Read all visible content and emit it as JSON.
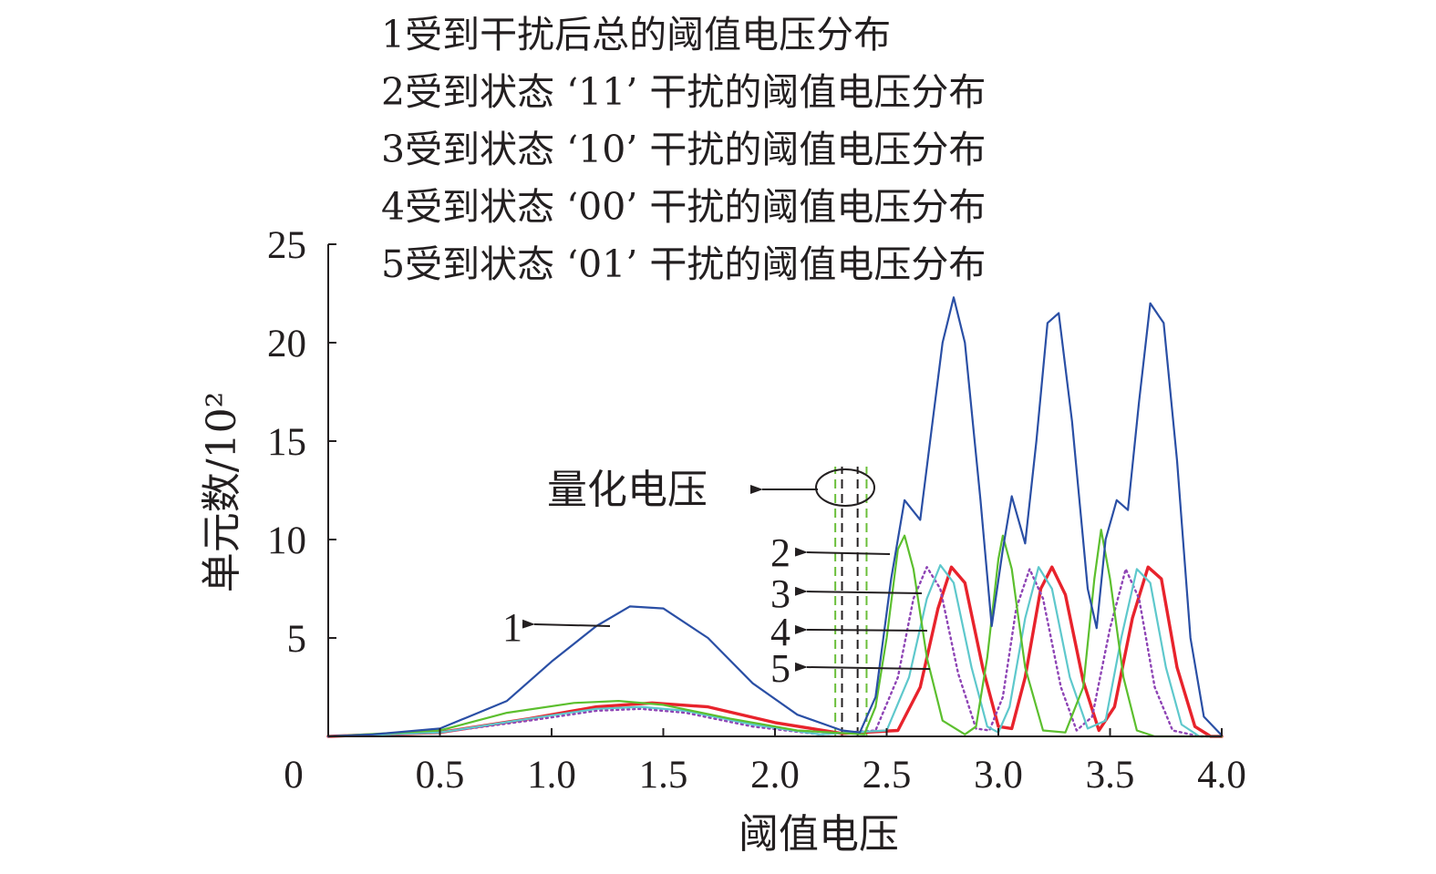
{
  "chart_data": {
    "type": "line",
    "xlabel": "阈值电压",
    "ylabel": "单元数/10²",
    "xlim": [
      0,
      4.0
    ],
    "ylim": [
      0,
      25
    ],
    "xticks": [
      "0",
      "0.5",
      "1.0",
      "1.5",
      "2.0",
      "2.5",
      "3.0",
      "3.5",
      "4.0"
    ],
    "yticks": [
      "5",
      "10",
      "15",
      "20",
      "25"
    ],
    "grid": false,
    "legend_position": "top",
    "legend": [
      "1受到干扰后总的阈值电压分布",
      "2受到状态 ‘11’ 干扰的阈值电压分布",
      "3受到状态 ‘10’ 干扰的阈值电压分布",
      "4受到状态 ‘00’ 干扰的阈值电压分布",
      "5受到状态 ‘01’ 干扰的阈值电压分布"
    ],
    "annotations": {
      "quantization_voltage": "量化电压",
      "curve_labels": [
        "1",
        "2",
        "3",
        "4",
        "5"
      ]
    },
    "quantization_lines": [
      {
        "x": 2.27,
        "color": "#6bbf3a"
      },
      {
        "x": 2.3,
        "color": "#231f20"
      },
      {
        "x": 2.37,
        "color": "#231f20"
      },
      {
        "x": 2.41,
        "color": "#6bbf3a"
      }
    ],
    "series": [
      {
        "color": "#2a4fa5",
        "points": [
          [
            0.0,
            0.0
          ],
          [
            0.2,
            0.1
          ],
          [
            0.5,
            0.4
          ],
          [
            0.8,
            1.8
          ],
          [
            1.0,
            3.8
          ],
          [
            1.2,
            5.6
          ],
          [
            1.35,
            6.6
          ],
          [
            1.5,
            6.5
          ],
          [
            1.7,
            5.0
          ],
          [
            1.9,
            2.7
          ],
          [
            2.1,
            1.1
          ],
          [
            2.3,
            0.3
          ],
          [
            2.38,
            0.2
          ],
          [
            2.45,
            2.0
          ],
          [
            2.52,
            8.0
          ],
          [
            2.58,
            12.0
          ],
          [
            2.65,
            11.0
          ],
          [
            2.7,
            15.5
          ],
          [
            2.75,
            20.0
          ],
          [
            2.8,
            22.3
          ],
          [
            2.85,
            20.0
          ],
          [
            2.92,
            12.0
          ],
          [
            2.97,
            5.6
          ],
          [
            3.02,
            9.5
          ],
          [
            3.06,
            12.2
          ],
          [
            3.12,
            9.8
          ],
          [
            3.17,
            15.0
          ],
          [
            3.22,
            21.0
          ],
          [
            3.27,
            21.5
          ],
          [
            3.33,
            16.0
          ],
          [
            3.4,
            7.5
          ],
          [
            3.44,
            5.5
          ],
          [
            3.48,
            10.0
          ],
          [
            3.53,
            12.0
          ],
          [
            3.58,
            11.5
          ],
          [
            3.63,
            17.0
          ],
          [
            3.68,
            22.0
          ],
          [
            3.74,
            21.0
          ],
          [
            3.8,
            14.0
          ],
          [
            3.86,
            5.0
          ],
          [
            3.92,
            1.0
          ],
          [
            4.0,
            0.05
          ]
        ]
      },
      {
        "color": "#5cbf2e",
        "points": [
          [
            0.0,
            0.0
          ],
          [
            0.5,
            0.3
          ],
          [
            0.8,
            1.2
          ],
          [
            1.1,
            1.7
          ],
          [
            1.3,
            1.8
          ],
          [
            1.5,
            1.6
          ],
          [
            1.8,
            0.9
          ],
          [
            2.1,
            0.3
          ],
          [
            2.4,
            0.1
          ],
          [
            2.45,
            1.5
          ],
          [
            2.5,
            5.0
          ],
          [
            2.55,
            9.5
          ],
          [
            2.58,
            10.2
          ],
          [
            2.62,
            8.5
          ],
          [
            2.68,
            4.0
          ],
          [
            2.75,
            0.8
          ],
          [
            2.85,
            0.1
          ],
          [
            2.9,
            0.5
          ],
          [
            2.95,
            4.0
          ],
          [
            3.0,
            9.0
          ],
          [
            3.02,
            10.2
          ],
          [
            3.06,
            8.5
          ],
          [
            3.12,
            3.5
          ],
          [
            3.2,
            0.3
          ],
          [
            3.3,
            0.2
          ],
          [
            3.38,
            2.5
          ],
          [
            3.43,
            8.0
          ],
          [
            3.46,
            10.5
          ],
          [
            3.5,
            8.0
          ],
          [
            3.56,
            3.0
          ],
          [
            3.62,
            0.3
          ],
          [
            3.7,
            0.0
          ],
          [
            4.0,
            0.0
          ]
        ]
      },
      {
        "color": "#5ec8cc",
        "points": [
          [
            0.0,
            0.0
          ],
          [
            0.5,
            0.2
          ],
          [
            0.9,
            0.9
          ],
          [
            1.2,
            1.4
          ],
          [
            1.4,
            1.5
          ],
          [
            1.6,
            1.3
          ],
          [
            1.9,
            0.6
          ],
          [
            2.2,
            0.1
          ],
          [
            2.5,
            0.3
          ],
          [
            2.6,
            3.0
          ],
          [
            2.68,
            7.0
          ],
          [
            2.74,
            8.7
          ],
          [
            2.8,
            7.8
          ],
          [
            2.88,
            3.5
          ],
          [
            2.95,
            0.5
          ],
          [
            3.0,
            0.2
          ],
          [
            3.05,
            1.5
          ],
          [
            3.12,
            6.0
          ],
          [
            3.18,
            8.6
          ],
          [
            3.24,
            7.5
          ],
          [
            3.32,
            3.0
          ],
          [
            3.4,
            0.4
          ],
          [
            3.48,
            0.8
          ],
          [
            3.55,
            5.0
          ],
          [
            3.62,
            8.5
          ],
          [
            3.68,
            7.8
          ],
          [
            3.75,
            3.5
          ],
          [
            3.82,
            0.6
          ],
          [
            3.9,
            0.0
          ],
          [
            4.0,
            0.0
          ]
        ]
      },
      {
        "color": "#8e44b5",
        "points": [
          [
            0.0,
            0.0
          ],
          [
            0.5,
            0.2
          ],
          [
            0.9,
            0.8
          ],
          [
            1.2,
            1.3
          ],
          [
            1.4,
            1.4
          ],
          [
            1.6,
            1.2
          ],
          [
            1.9,
            0.5
          ],
          [
            2.2,
            0.1
          ],
          [
            2.45,
            0.3
          ],
          [
            2.55,
            3.0
          ],
          [
            2.62,
            7.0
          ],
          [
            2.68,
            8.6
          ],
          [
            2.74,
            7.5
          ],
          [
            2.82,
            3.2
          ],
          [
            2.9,
            0.4
          ],
          [
            2.96,
            0.3
          ],
          [
            3.02,
            2.0
          ],
          [
            3.08,
            6.5
          ],
          [
            3.14,
            8.5
          ],
          [
            3.2,
            7.0
          ],
          [
            3.28,
            2.5
          ],
          [
            3.35,
            0.3
          ],
          [
            3.42,
            1.0
          ],
          [
            3.5,
            5.5
          ],
          [
            3.57,
            8.5
          ],
          [
            3.63,
            7.0
          ],
          [
            3.7,
            2.5
          ],
          [
            3.78,
            0.3
          ],
          [
            3.9,
            0.0
          ],
          [
            4.0,
            0.0
          ]
        ]
      },
      {
        "color": "#e8232c",
        "points": [
          [
            0.0,
            0.0
          ],
          [
            0.5,
            0.2
          ],
          [
            0.9,
            0.9
          ],
          [
            1.2,
            1.5
          ],
          [
            1.45,
            1.7
          ],
          [
            1.7,
            1.5
          ],
          [
            2.0,
            0.7
          ],
          [
            2.3,
            0.15
          ],
          [
            2.55,
            0.3
          ],
          [
            2.65,
            2.5
          ],
          [
            2.73,
            6.5
          ],
          [
            2.79,
            8.6
          ],
          [
            2.85,
            7.8
          ],
          [
            2.93,
            3.5
          ],
          [
            3.0,
            0.5
          ],
          [
            3.06,
            0.4
          ],
          [
            3.12,
            3.0
          ],
          [
            3.19,
            7.5
          ],
          [
            3.24,
            8.6
          ],
          [
            3.3,
            7.2
          ],
          [
            3.38,
            2.8
          ],
          [
            3.45,
            0.3
          ],
          [
            3.52,
            1.5
          ],
          [
            3.6,
            6.0
          ],
          [
            3.67,
            8.6
          ],
          [
            3.73,
            8.0
          ],
          [
            3.8,
            3.5
          ],
          [
            3.88,
            0.5
          ],
          [
            3.95,
            0.0
          ],
          [
            4.0,
            0.0
          ]
        ]
      }
    ]
  }
}
